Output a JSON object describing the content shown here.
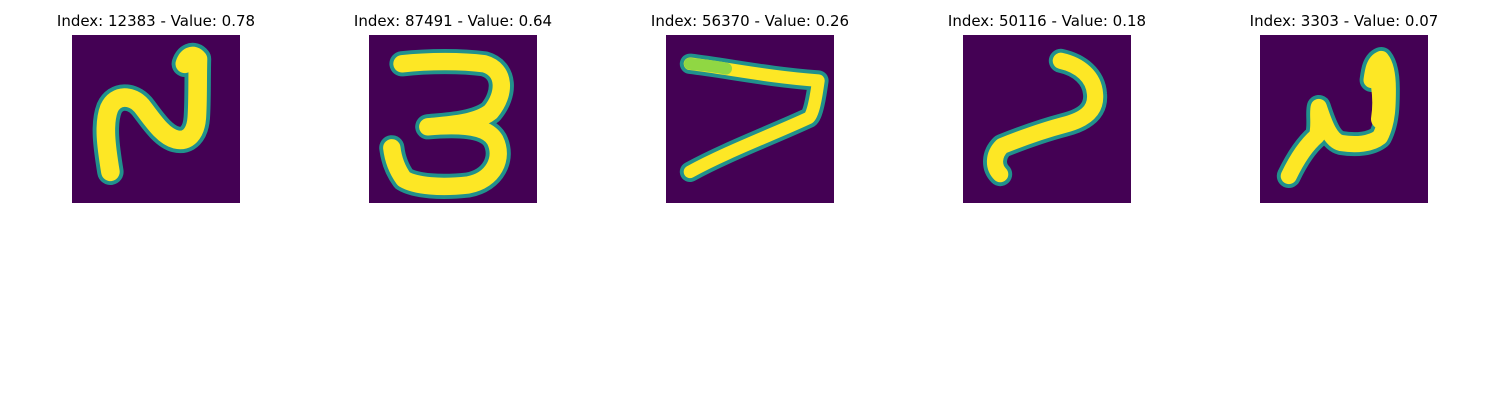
{
  "panels": [
    {
      "title": "Index: 12383 - Value: 0.78"
    },
    {
      "title": "Index: 87491 - Value: 0.64"
    },
    {
      "title": "Index: 56370 - Value: 0.26"
    },
    {
      "title": "Index: 50116 - Value: 0.18"
    },
    {
      "title": "Index: 3303 - Value: 0.07"
    }
  ],
  "colors": {
    "background": "#440154",
    "foreground": "#fde725",
    "mid_tone": "#21918c",
    "light_tone": "#90d743"
  }
}
